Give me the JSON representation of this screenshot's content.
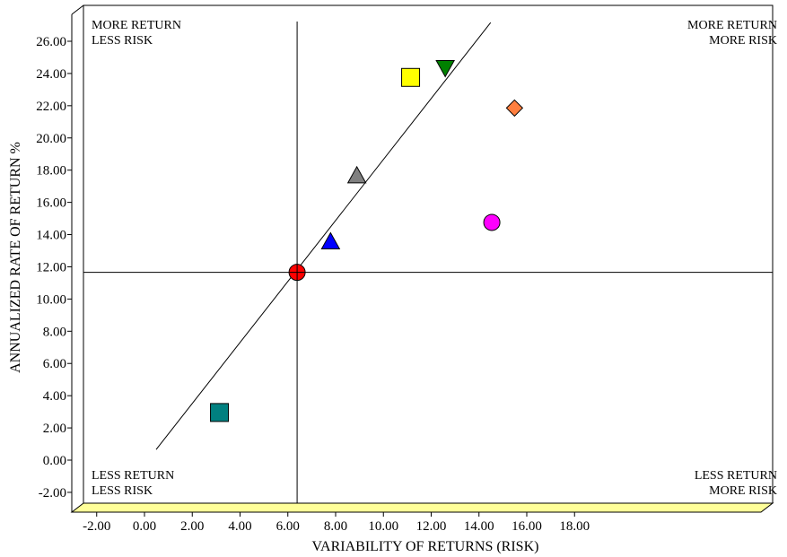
{
  "chart_data": {
    "type": "scatter",
    "title": "",
    "xlabel": "VARIABILITY OF RETURNS (RISK)",
    "ylabel": "ANNUALIZED RATE OF RETURN %",
    "xlim": [
      -2,
      18
    ],
    "ylim": [
      -2,
      26
    ],
    "x_ticks": [
      "-2.00",
      "0.00",
      "2.00",
      "4.00",
      "6.00",
      "8.00",
      "10.00",
      "12.00",
      "14.00",
      "16.00",
      "18.00"
    ],
    "y_ticks": [
      "-2.00",
      "0.00",
      "2.00",
      "4.00",
      "6.00",
      "8.00",
      "10.00",
      "12.00",
      "14.00",
      "16.00",
      "18.00",
      "20.00",
      "22.00",
      "24.00",
      "26.00"
    ],
    "grid": false,
    "floor_color": "#ffff99",
    "crosshair": {
      "x": 5.9,
      "y": 11.1
    },
    "trend_line": {
      "x1": 0.0,
      "y1": 0.1,
      "x2": 14.0,
      "y2": 26.6
    },
    "quadrant_labels": {
      "top_left": [
        "MORE RETURN",
        "LESS RISK"
      ],
      "top_right": [
        "MORE RETURN",
        "MORE RISK"
      ],
      "bottom_left": [
        "LESS RETURN",
        "LESS RISK"
      ],
      "bottom_right": [
        "LESS RETURN",
        "MORE RISK"
      ]
    },
    "points": [
      {
        "x": 5.9,
        "y": 11.1,
        "shape": "crossed-circle",
        "color": "#ff0000"
      },
      {
        "x": 2.65,
        "y": 2.4,
        "shape": "square",
        "color": "#008080"
      },
      {
        "x": 7.3,
        "y": 13.0,
        "shape": "triangle-up",
        "color": "#0000ff"
      },
      {
        "x": 8.4,
        "y": 17.1,
        "shape": "triangle-up",
        "color": "#808080"
      },
      {
        "x": 10.65,
        "y": 23.2,
        "shape": "square",
        "color": "#ffff00"
      },
      {
        "x": 12.1,
        "y": 23.8,
        "shape": "triangle-down",
        "color": "#008000"
      },
      {
        "x": 14.05,
        "y": 14.2,
        "shape": "circle",
        "color": "#ff00ff"
      },
      {
        "x": 15.0,
        "y": 21.3,
        "shape": "diamond",
        "color": "#ff7f3f"
      }
    ]
  }
}
